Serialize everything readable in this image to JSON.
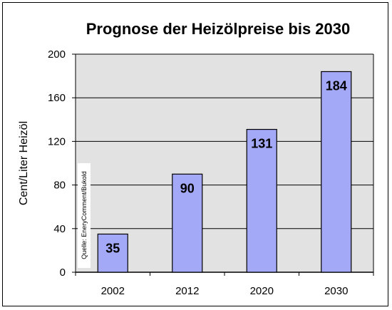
{
  "chart_data": {
    "type": "bar",
    "title": "Prognose der Heizölpreise bis 2030",
    "ylabel": "Cent/Liter Heizöl",
    "xlabel": "",
    "categories": [
      "2002",
      "2012",
      "2020",
      "2030"
    ],
    "values": [
      35,
      90,
      131,
      184
    ],
    "ylim": [
      0,
      200
    ],
    "yticks": [
      "0",
      "40",
      "80",
      "120",
      "160",
      "200"
    ],
    "grid": true,
    "legend": "none",
    "colors": {
      "bar": "#a3a8f7",
      "plot_bg": "#e2e2e2",
      "bar_stroke": "#000000"
    },
    "source_note": "Quelle: EneryComment/Bukold"
  }
}
